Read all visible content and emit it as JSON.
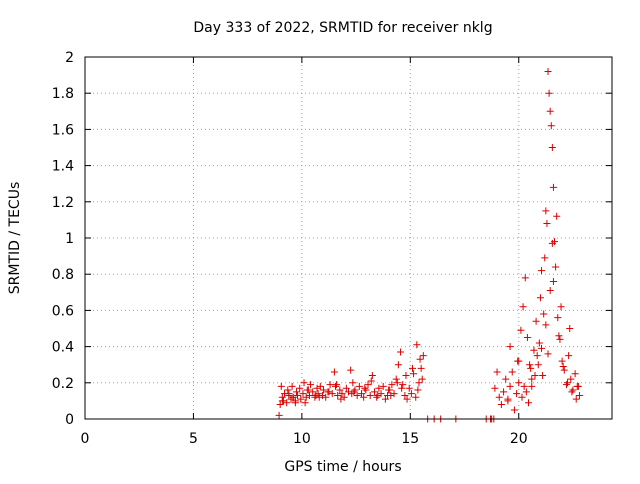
{
  "chart_data": {
    "type": "scatter",
    "title": "Day 333 of 2022, SRMTID for receiver nklg",
    "xlabel": "GPS time / hours",
    "ylabel": "SRMTID / TECUs",
    "xlim": [
      0,
      24.3
    ],
    "ylim": [
      0,
      2
    ],
    "grid": true,
    "marker": "plus",
    "colors": {
      "series": "#dd0000",
      "grid": "#a0a0a0",
      "axis": "#000000"
    },
    "x_ticks": [
      {
        "value": 0,
        "label": "0"
      },
      {
        "value": 5,
        "label": "5"
      },
      {
        "value": 10,
        "label": "10"
      },
      {
        "value": 15,
        "label": "15"
      },
      {
        "value": 20,
        "label": "20"
      }
    ],
    "y_ticks": [
      {
        "value": 0,
        "label": "0"
      },
      {
        "value": 0.2,
        "label": "0.2"
      },
      {
        "value": 0.4,
        "label": "0.4"
      },
      {
        "value": 0.6,
        "label": "0.6"
      },
      {
        "value": 0.8,
        "label": "0.8"
      },
      {
        "value": 1.0,
        "label": "1"
      },
      {
        "value": 1.2,
        "label": "1.2"
      },
      {
        "value": 1.4,
        "label": "1.4"
      },
      {
        "value": 1.6,
        "label": "1.6"
      },
      {
        "value": 1.8,
        "label": "1.8"
      },
      {
        "value": 2.0,
        "label": "2"
      }
    ],
    "series": [
      {
        "name": "SRMTID",
        "x": [
          8.95,
          9.0,
          9.1,
          9.15,
          9.2,
          9.3,
          9.35,
          9.4,
          9.5,
          9.55,
          9.6,
          9.7,
          9.75,
          9.8,
          9.9,
          9.95,
          10.05,
          10.1,
          10.2,
          10.25,
          10.35,
          10.4,
          10.5,
          10.6,
          10.7,
          10.75,
          10.85,
          10.95,
          11.0,
          11.1,
          11.2,
          11.3,
          11.4,
          11.5,
          11.55,
          11.65,
          11.75,
          11.85,
          11.95,
          12.05,
          12.15,
          12.25,
          12.35,
          12.45,
          12.55,
          12.65,
          12.75,
          12.85,
          12.95,
          13.05,
          13.15,
          13.25,
          13.35,
          13.45,
          13.55,
          13.65,
          13.75,
          13.85,
          13.95,
          14.05,
          14.15,
          14.25,
          14.35,
          14.45,
          14.55,
          14.65,
          14.75,
          14.85,
          14.95,
          15.05,
          15.15,
          15.25,
          15.3,
          15.4,
          15.5,
          15.6,
          15.8,
          16.1,
          16.4,
          17.1,
          18.5,
          18.7,
          18.75,
          18.85,
          18.9,
          19.0,
          19.1,
          19.2,
          19.3,
          19.4,
          19.5,
          19.6,
          19.7,
          19.8,
          19.9,
          20.0,
          20.1,
          20.2,
          20.3,
          20.4,
          20.5,
          20.6,
          20.7,
          20.8,
          20.9,
          21.0,
          21.05,
          21.1,
          21.2,
          21.25,
          21.3,
          21.35,
          21.4,
          21.45,
          21.5,
          21.55,
          21.6,
          21.65,
          21.7,
          21.8,
          21.9,
          22.0,
          22.1,
          22.2,
          22.3,
          22.4,
          22.5,
          22.6,
          22.7,
          22.8,
          9.1,
          9.4,
          9.7,
          10.3,
          10.8,
          11.6,
          12.4,
          13.2,
          14.1,
          14.6,
          15.1,
          15.45,
          19.6,
          20.0,
          20.15,
          20.35,
          20.45,
          20.6,
          20.75,
          20.85,
          20.95,
          21.15,
          21.35,
          21.45,
          21.55,
          21.75,
          21.85,
          22.05,
          22.25,
          22.45,
          22.65,
          9.05,
          9.6,
          10.15,
          10.65,
          11.25,
          11.8,
          12.3,
          12.9,
          13.5,
          14.0,
          14.4,
          14.8,
          15.35,
          15.55,
          19.5,
          19.95,
          20.25,
          20.55,
          21.05,
          21.25,
          21.6,
          21.95,
          22.35,
          22.75
        ],
        "y": [
          0.02,
          0.08,
          0.12,
          0.1,
          0.14,
          0.09,
          0.16,
          0.13,
          0.11,
          0.18,
          0.12,
          0.1,
          0.15,
          0.13,
          0.17,
          0.11,
          0.14,
          0.2,
          0.12,
          0.16,
          0.13,
          0.19,
          0.15,
          0.12,
          0.17,
          0.14,
          0.18,
          0.13,
          0.16,
          0.12,
          0.15,
          0.19,
          0.14,
          0.26,
          0.18,
          0.13,
          0.16,
          0.14,
          0.12,
          0.17,
          0.15,
          0.27,
          0.2,
          0.16,
          0.13,
          0.18,
          0.14,
          0.12,
          0.16,
          0.19,
          0.13,
          0.24,
          0.15,
          0.12,
          0.17,
          0.14,
          0.18,
          0.11,
          0.13,
          0.16,
          0.19,
          0.14,
          0.22,
          0.3,
          0.37,
          0.19,
          0.13,
          0.11,
          0.17,
          0.14,
          0.25,
          0.12,
          0.41,
          0.2,
          0.28,
          0.35,
          0.0,
          0.0,
          0.0,
          0.0,
          0.0,
          0.0,
          0.0,
          0.0,
          0.17,
          0.26,
          0.12,
          0.08,
          0.15,
          0.22,
          0.1,
          0.18,
          0.26,
          0.05,
          0.14,
          0.32,
          0.49,
          0.62,
          0.78,
          0.45,
          0.3,
          0.22,
          0.38,
          0.54,
          0.3,
          0.67,
          0.82,
          0.24,
          0.89,
          1.15,
          1.08,
          1.92,
          1.8,
          1.7,
          1.62,
          1.5,
          1.28,
          0.98,
          0.84,
          0.56,
          0.44,
          0.32,
          0.27,
          0.19,
          0.35,
          0.22,
          0.16,
          0.25,
          0.18,
          0.13,
          0.1,
          0.14,
          0.09,
          0.16,
          0.12,
          0.19,
          0.15,
          0.21,
          0.13,
          0.17,
          0.28,
          0.33,
          0.4,
          0.2,
          0.12,
          0.15,
          0.09,
          0.18,
          0.24,
          0.35,
          0.42,
          0.58,
          0.36,
          0.71,
          0.97,
          1.12,
          0.46,
          0.29,
          0.2,
          0.15,
          0.11,
          0.18,
          0.12,
          0.09,
          0.13,
          0.15,
          0.11,
          0.14,
          0.17,
          0.13,
          0.16,
          0.2,
          0.24,
          0.16,
          0.22,
          0.11,
          0.32,
          0.18,
          0.28,
          0.39,
          0.52,
          0.76,
          0.62,
          0.5,
          0.18
        ]
      }
    ]
  }
}
